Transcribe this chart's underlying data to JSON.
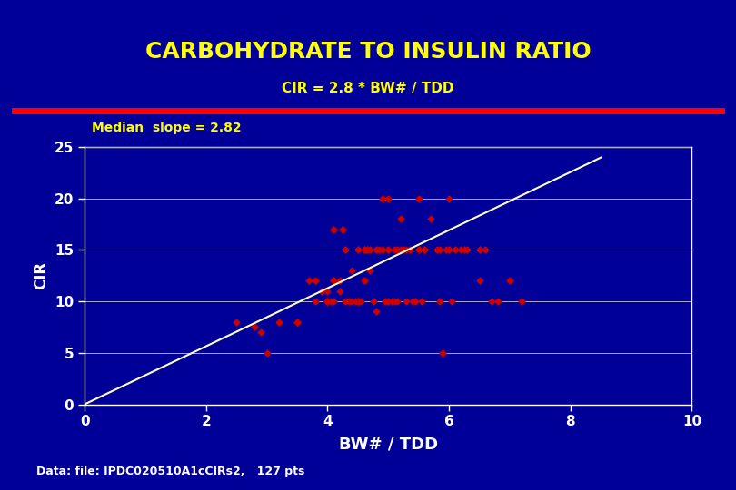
{
  "title": "CARBOHYDRATE TO INSULIN RATIO",
  "subtitle": "CIR = 2.8 * BW# / TDD",
  "annotation": "Median  slope = 2.82",
  "footer": "Data: file: IPDC020510A1cCIRs2,   127 pts",
  "xlabel": "BW# / TDD",
  "ylabel": "CIR",
  "background_color": "#000099",
  "plot_bg_color": "#000099",
  "title_color": "#FFFF00",
  "subtitle_color": "#FFFF00",
  "annotation_color": "#FFFF00",
  "footer_color": "#FFFFFF",
  "axis_color": "#FFFFFF",
  "tick_color": "#FFFFFF",
  "xlabel_color": "#FFFFFF",
  "ylabel_color": "#FFFFFF",
  "red_line_color": "#FF0000",
  "scatter_color": "#CC0000",
  "slope_line_color": "#FFFFCC",
  "xlim": [
    0,
    10
  ],
  "ylim": [
    0,
    25
  ],
  "xticks": [
    0,
    2,
    4,
    6,
    8,
    10
  ],
  "yticks": [
    0,
    5,
    10,
    15,
    20,
    25
  ],
  "slope": 2.82,
  "scatter_x": [
    2.5,
    2.8,
    2.9,
    3.0,
    3.2,
    3.5,
    3.5,
    3.7,
    3.8,
    3.9,
    4.0,
    4.0,
    4.0,
    4.0,
    4.0,
    4.1,
    4.1,
    4.1,
    4.2,
    4.2,
    4.3,
    4.3,
    4.3,
    4.4,
    4.4,
    4.5,
    4.5,
    4.5,
    4.5,
    4.5,
    4.6,
    4.6,
    4.7,
    4.7,
    4.8,
    4.8,
    4.8,
    4.9,
    4.9,
    5.0,
    5.0,
    5.0,
    5.0,
    5.0,
    5.1,
    5.1,
    5.2,
    5.2,
    5.3,
    5.3,
    5.4,
    5.5,
    5.5,
    5.5,
    5.6,
    5.6,
    5.7,
    5.8,
    5.9,
    6.0,
    6.0,
    6.0,
    6.1,
    6.2,
    6.3,
    6.5,
    6.5,
    6.5,
    6.6,
    6.7,
    6.8,
    7.0,
    7.2,
    3.8,
    4.1,
    4.6,
    5.15,
    5.45,
    5.85,
    4.05,
    4.55,
    5.05,
    5.55,
    6.05,
    4.25,
    4.85,
    5.25,
    4.95,
    5.15,
    4.35,
    4.65,
    5.35,
    5.85,
    6.25,
    4.45,
    4.75,
    5.45,
    5.95
  ],
  "scatter_y": [
    8.0,
    7.5,
    7.0,
    5.0,
    8.0,
    8.0,
    8.0,
    12.0,
    12.0,
    11.0,
    10.0,
    10.0,
    10.0,
    10.0,
    11.0,
    10.0,
    12.0,
    12.0,
    12.0,
    11.0,
    15.0,
    15.0,
    10.0,
    13.0,
    10.0,
    10.0,
    15.0,
    15.0,
    10.0,
    10.0,
    15.0,
    12.0,
    13.0,
    15.0,
    15.0,
    15.0,
    9.0,
    15.0,
    20.0,
    20.0,
    15.0,
    15.0,
    10.0,
    10.0,
    15.0,
    10.0,
    18.0,
    15.0,
    15.0,
    10.0,
    10.0,
    15.0,
    15.0,
    20.0,
    15.0,
    15.0,
    18.0,
    15.0,
    5.0,
    15.0,
    15.0,
    20.0,
    15.0,
    15.0,
    15.0,
    15.0,
    15.0,
    12.0,
    15.0,
    10.0,
    10.0,
    12.0,
    10.0,
    10.0,
    17.0,
    15.0,
    15.0,
    10.0,
    15.0,
    10.0,
    10.0,
    10.0,
    10.0,
    10.0,
    17.0,
    15.0,
    15.0,
    10.0,
    10.0,
    10.0,
    15.0,
    15.0,
    10.0,
    15.0,
    10.0,
    10.0,
    10.0,
    15.0
  ]
}
